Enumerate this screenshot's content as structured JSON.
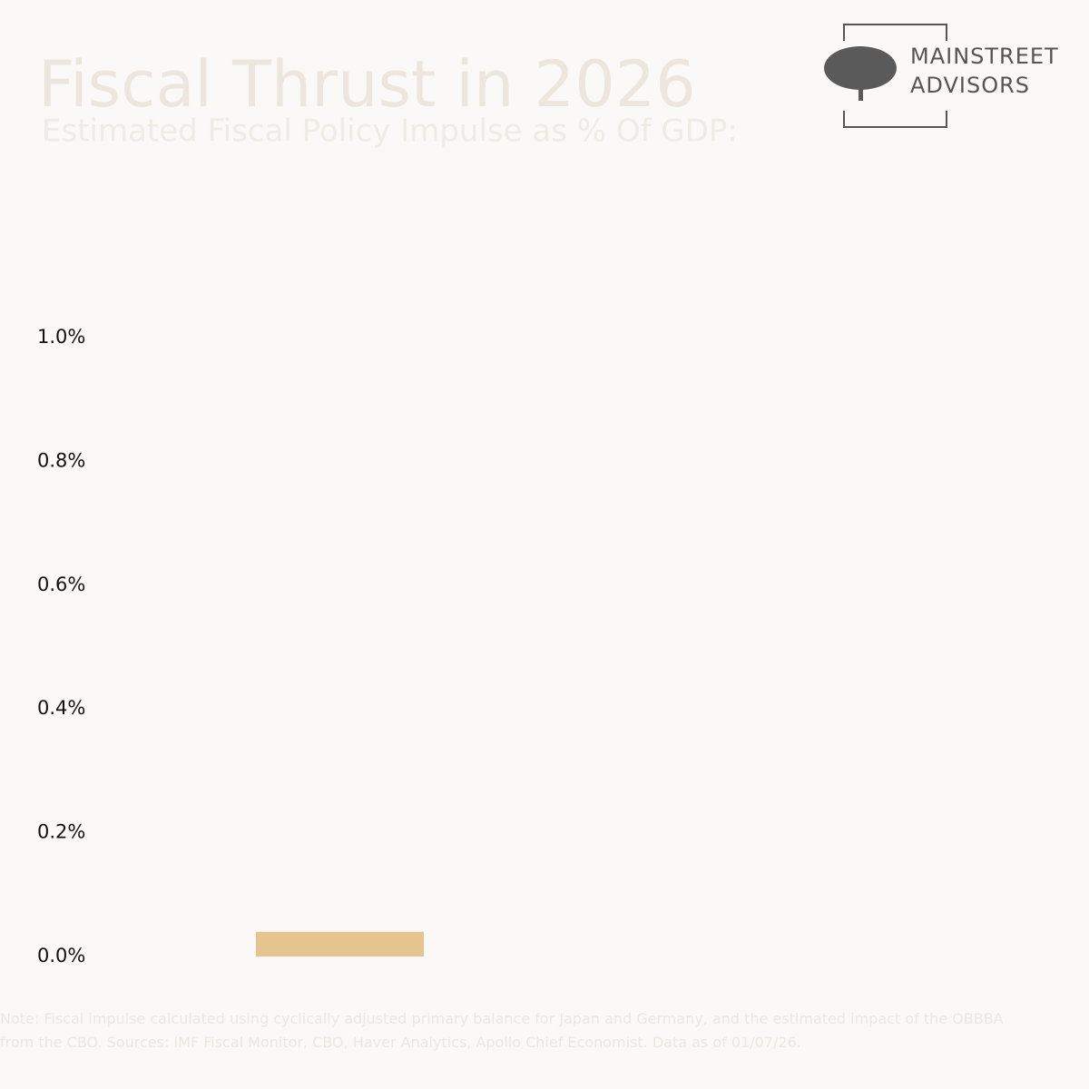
{
  "chart_data": {
    "type": "bar",
    "title": "Fiscal Thrust in 2026",
    "subtitle": "Estimated Fiscal Policy Impulse as % Of GDP:",
    "logo": {
      "line1": "MAINSTREET",
      "line2": "ADVISORS"
    },
    "categories": [
      null
    ],
    "values": [
      0.04
    ],
    "color": "#e6c48e",
    "ylim": [
      0,
      1.0
    ],
    "yticks": [
      {
        "value": 0,
        "label": "0.0%"
      },
      {
        "value": 0.2,
        "label": "0.2%"
      },
      {
        "value": 0.4,
        "label": "0.4%"
      },
      {
        "value": 0.6,
        "label": "0.6%"
      },
      {
        "value": 0.8,
        "label": "0.8%"
      },
      {
        "value": 1.0,
        "label": "1.0%"
      }
    ],
    "grid": false,
    "note": "Note: Fiscal impulse calculated using cyclically adjusted primary balance for Japan and Germany, and the estimated impact of the OBBBA from the CBO. Sources: IMF Fiscal Monitor, CBO, Haver Analytics, Apollo Chief Economist. Data as of 01/07/26."
  }
}
